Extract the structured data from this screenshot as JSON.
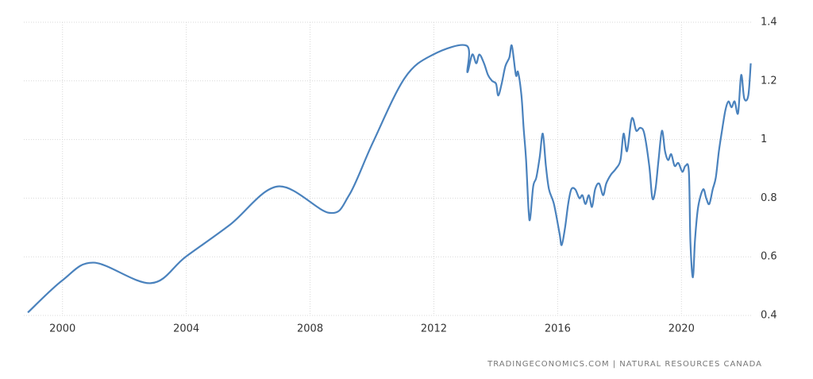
{
  "chart_data": {
    "type": "line",
    "source": "TRADINGECONOMICS.COM | NATURAL RESOURCES CANADA",
    "x": [
      1998.88,
      2000.0,
      2001.01,
      2002.85,
      2003.98,
      2005.42,
      2006.96,
      2008.62,
      2009.26,
      2010.03,
      2011.06,
      2011.98,
      2013.06,
      2013.08,
      2013.24,
      2013.37,
      2013.47,
      2013.62,
      2013.75,
      2013.88,
      2014.01,
      2014.08,
      2014.19,
      2014.31,
      2014.44,
      2014.52,
      2014.65,
      2014.72,
      2014.83,
      2014.9,
      2014.98,
      2015.06,
      2015.11,
      2015.21,
      2015.31,
      2015.42,
      2015.52,
      2015.62,
      2015.72,
      2015.88,
      2016.06,
      2016.13,
      2016.24,
      2016.34,
      2016.44,
      2016.57,
      2016.7,
      2016.8,
      2016.9,
      2017.01,
      2017.11,
      2017.21,
      2017.34,
      2017.47,
      2017.57,
      2017.72,
      2017.88,
      2018.03,
      2018.13,
      2018.24,
      2018.37,
      2018.44,
      2018.54,
      2018.67,
      2018.8,
      2018.96,
      2019.06,
      2019.16,
      2019.26,
      2019.37,
      2019.47,
      2019.57,
      2019.67,
      2019.78,
      2019.9,
      2020.03,
      2020.13,
      2020.24,
      2020.29,
      2020.37,
      2020.44,
      2020.54,
      2020.7,
      2020.8,
      2020.9,
      2021.01,
      2021.11,
      2021.21,
      2021.31,
      2021.42,
      2021.52,
      2021.62,
      2021.72,
      2021.83,
      2021.93,
      2022.03,
      2022.16,
      2022.24
    ],
    "series": [
      {
        "color": "#4a82bd",
        "values": [
          0.41,
          0.52,
          0.58,
          0.51,
          0.6,
          0.71,
          0.84,
          0.75,
          0.81,
          0.99,
          1.21,
          1.29,
          1.32,
          1.23,
          1.29,
          1.26,
          1.29,
          1.26,
          1.22,
          1.2,
          1.19,
          1.15,
          1.19,
          1.25,
          1.28,
          1.32,
          1.22,
          1.23,
          1.15,
          1.04,
          0.93,
          0.76,
          0.73,
          0.84,
          0.87,
          0.94,
          1.02,
          0.91,
          0.83,
          0.78,
          0.68,
          0.64,
          0.7,
          0.78,
          0.83,
          0.83,
          0.8,
          0.81,
          0.78,
          0.81,
          0.77,
          0.83,
          0.85,
          0.81,
          0.85,
          0.88,
          0.9,
          0.93,
          1.02,
          0.96,
          1.06,
          1.07,
          1.03,
          1.04,
          1.02,
          0.91,
          0.8,
          0.83,
          0.93,
          1.03,
          0.96,
          0.93,
          0.95,
          0.91,
          0.92,
          0.89,
          0.91,
          0.89,
          0.65,
          0.53,
          0.66,
          0.77,
          0.83,
          0.8,
          0.78,
          0.83,
          0.87,
          0.96,
          1.03,
          1.1,
          1.13,
          1.11,
          1.13,
          1.09,
          1.22,
          1.14,
          1.15,
          1.26
        ]
      }
    ],
    "xlim": [
      1998.75,
      2022.25
    ],
    "xticks": [
      2000,
      2004,
      2008,
      2012,
      2016,
      2020
    ],
    "ylim": [
      0.4,
      1.4
    ],
    "yticks": [
      0.4,
      0.6,
      0.8,
      1,
      1.2,
      1.4
    ],
    "grid": true
  }
}
